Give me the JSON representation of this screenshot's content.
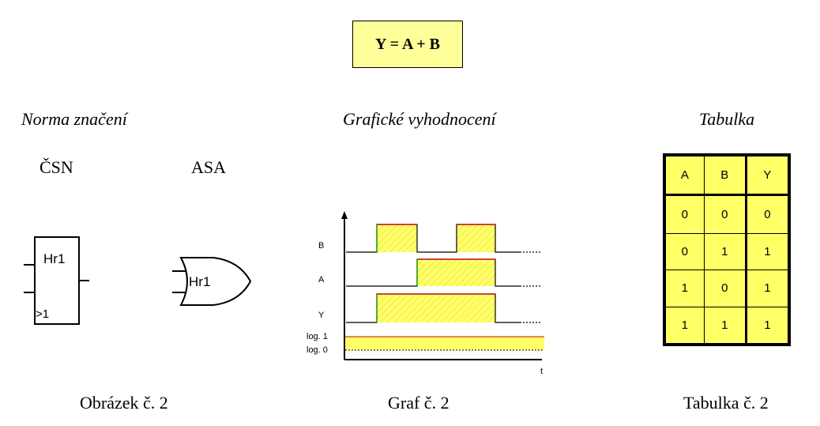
{
  "formula": "Y = A + B",
  "headings": {
    "norma": "Norma značení",
    "graf": "Grafické vyhodnocení",
    "tabulka": "Tabulka"
  },
  "standards": {
    "csn": "ČSN",
    "asa": "ASA"
  },
  "gates": {
    "csn_label": "Hr1",
    "csn_symbol": ">1",
    "asa_label": "Hr1"
  },
  "timing": {
    "signal_labels": {
      "b": "B",
      "a": "A",
      "y": "Y"
    },
    "level_labels": {
      "log1": "log. 1",
      "log0": "log. 0"
    },
    "axis_label": "t",
    "highlight_color": "#ffff66",
    "edge_color_red": "#cc0000",
    "edge_color_green": "#009900"
  },
  "table": {
    "headers": [
      "A",
      "B",
      "Y"
    ],
    "rows": [
      [
        "0",
        "0",
        "0"
      ],
      [
        "0",
        "1",
        "1"
      ],
      [
        "1",
        "0",
        "1"
      ],
      [
        "1",
        "1",
        "1"
      ]
    ]
  },
  "captions": {
    "obrazek": "Obrázek č. 2",
    "graf": "Graf č. 2",
    "tabulka": "Tabulka č. 2"
  }
}
